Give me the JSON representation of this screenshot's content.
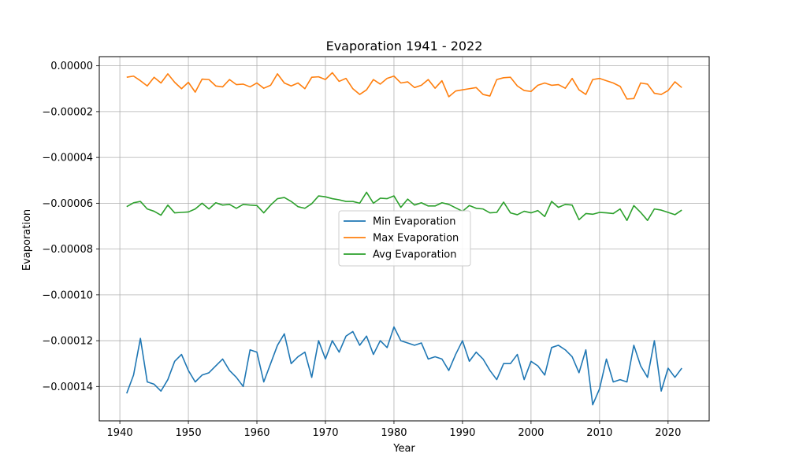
{
  "chart_data": {
    "type": "line",
    "title": "Evaporation 1941 - 2022",
    "xlabel": "Year",
    "ylabel": "Evaporation",
    "xlim": [
      1937,
      2026
    ],
    "ylim": [
      -0.000155,
      4e-06
    ],
    "xticks": [
      1940,
      1950,
      1960,
      1970,
      1980,
      1990,
      2000,
      2010,
      2020
    ],
    "xtick_labels": [
      "1940",
      "1950",
      "1960",
      "1970",
      "1980",
      "1990",
      "2000",
      "2010",
      "2020"
    ],
    "yticks": [
      0,
      -2e-05,
      -4e-05,
      -6e-05,
      -8e-05,
      -0.0001,
      -0.00012,
      -0.00014
    ],
    "ytick_labels": [
      "0.00000",
      "−0.00002",
      "−0.00004",
      "−0.00006",
      "−0.00008",
      "−0.00010",
      "−0.00012",
      "−0.00014"
    ],
    "grid": true,
    "legend_position": "center",
    "x": [
      1941,
      1942,
      1943,
      1944,
      1945,
      1946,
      1947,
      1948,
      1949,
      1950,
      1951,
      1952,
      1953,
      1954,
      1955,
      1956,
      1957,
      1958,
      1959,
      1960,
      1961,
      1962,
      1963,
      1964,
      1965,
      1966,
      1967,
      1968,
      1969,
      1970,
      1971,
      1972,
      1973,
      1974,
      1975,
      1976,
      1977,
      1978,
      1979,
      1980,
      1981,
      1982,
      1983,
      1984,
      1985,
      1986,
      1987,
      1988,
      1989,
      1990,
      1991,
      1992,
      1993,
      1994,
      1995,
      1996,
      1997,
      1998,
      1999,
      2000,
      2001,
      2002,
      2003,
      2004,
      2005,
      2006,
      2007,
      2008,
      2009,
      2010,
      2011,
      2012,
      2013,
      2014,
      2015,
      2016,
      2017,
      2018,
      2019,
      2020,
      2021,
      2022
    ],
    "series": [
      {
        "name": "Min Evaporation",
        "color": "#1f77b4",
        "values": [
          -0.000143,
          -0.000135,
          -0.000119,
          -0.000138,
          -0.000139,
          -0.000142,
          -0.000137,
          -0.000129,
          -0.000126,
          -0.000133,
          -0.000138,
          -0.000135,
          -0.000134,
          -0.000131,
          -0.000128,
          -0.000133,
          -0.000136,
          -0.00014,
          -0.000124,
          -0.000125,
          -0.000138,
          -0.00013,
          -0.000122,
          -0.000117,
          -0.00013,
          -0.000127,
          -0.000125,
          -0.000136,
          -0.00012,
          -0.000128,
          -0.00012,
          -0.000125,
          -0.000118,
          -0.000116,
          -0.000122,
          -0.000118,
          -0.000126,
          -0.00012,
          -0.000123,
          -0.000114,
          -0.00012,
          -0.000121,
          -0.000122,
          -0.000121,
          -0.000128,
          -0.000127,
          -0.000128,
          -0.000133,
          -0.000126,
          -0.00012,
          -0.000129,
          -0.000125,
          -0.000128,
          -0.000133,
          -0.000137,
          -0.00013,
          -0.00013,
          -0.000126,
          -0.000137,
          -0.000129,
          -0.000131,
          -0.000135,
          -0.000123,
          -0.000122,
          -0.000124,
          -0.000127,
          -0.000134,
          -0.000124,
          -0.000148,
          -0.000141,
          -0.000128,
          -0.000138,
          -0.000137,
          -0.000138,
          -0.000122,
          -0.000131,
          -0.000136,
          -0.00012,
          -0.000142,
          -0.000132,
          -0.000136,
          -0.000132
        ]
      },
      {
        "name": "Max Evaporation",
        "color": "#ff7f0e",
        "values": [
          -5e-06,
          -4.5e-06,
          -6.5e-06,
          -8.8e-06,
          -5e-06,
          -7.5e-06,
          -3.5e-06,
          -7.2e-06,
          -1e-05,
          -7.2e-06,
          -1.15e-05,
          -5.8e-06,
          -6e-06,
          -8.8e-06,
          -9.2e-06,
          -6e-06,
          -8.2e-06,
          -8e-06,
          -9.2e-06,
          -7.5e-06,
          -9.8e-06,
          -8.5e-06,
          -3.5e-06,
          -7.5e-06,
          -8.8e-06,
          -7.5e-06,
          -1e-05,
          -5e-06,
          -4.8e-06,
          -6e-06,
          -3e-06,
          -6.8e-06,
          -5.5e-06,
          -1e-05,
          -1.25e-05,
          -1.05e-05,
          -6e-06,
          -8e-06,
          -5.5e-06,
          -4.5e-06,
          -7.5e-06,
          -7e-06,
          -9.5e-06,
          -8.5e-06,
          -6e-06,
          -9.8e-06,
          -6.5e-06,
          -1.35e-05,
          -1.1e-05,
          -1.05e-05,
          -1e-05,
          -9.5e-06,
          -1.25e-05,
          -1.32e-05,
          -6e-06,
          -5.2e-06,
          -5e-06,
          -8.8e-06,
          -1.08e-05,
          -1.12e-05,
          -8.5e-06,
          -7.5e-06,
          -8.5e-06,
          -8.2e-06,
          -9.8e-06,
          -5.5e-06,
          -1.05e-05,
          -1.25e-05,
          -6e-06,
          -5.5e-06,
          -6.5e-06,
          -7.5e-06,
          -9e-06,
          -1.45e-05,
          -1.43e-05,
          -7.5e-06,
          -8e-06,
          -1.2e-05,
          -1.25e-05,
          -1.08e-05,
          -7e-06,
          -9.5e-06
        ]
      },
      {
        "name": "Avg Evaporation",
        "color": "#2ca02c",
        "values": [
          -6.15e-05,
          -5.98e-05,
          -5.92e-05,
          -6.25e-05,
          -6.35e-05,
          -6.52e-05,
          -6.08e-05,
          -6.42e-05,
          -6.4e-05,
          -6.38e-05,
          -6.25e-05,
          -6e-05,
          -6.25e-05,
          -5.98e-05,
          -6.08e-05,
          -6.05e-05,
          -6.22e-05,
          -6.05e-05,
          -6.08e-05,
          -6.1e-05,
          -6.42e-05,
          -6.08e-05,
          -5.8e-05,
          -5.75e-05,
          -5.92e-05,
          -6.15e-05,
          -6.22e-05,
          -6.02e-05,
          -5.68e-05,
          -5.72e-05,
          -5.8e-05,
          -5.85e-05,
          -5.92e-05,
          -5.92e-05,
          -6e-05,
          -5.52e-05,
          -6e-05,
          -5.78e-05,
          -5.8e-05,
          -5.68e-05,
          -6.18e-05,
          -5.82e-05,
          -6.08e-05,
          -5.98e-05,
          -6.12e-05,
          -6.12e-05,
          -5.98e-05,
          -6.05e-05,
          -6.2e-05,
          -6.35e-05,
          -6.1e-05,
          -6.22e-05,
          -6.25e-05,
          -6.42e-05,
          -6.4e-05,
          -5.95e-05,
          -6.42e-05,
          -6.5e-05,
          -6.35e-05,
          -6.42e-05,
          -6.32e-05,
          -6.58e-05,
          -5.92e-05,
          -6.18e-05,
          -6.05e-05,
          -6.08e-05,
          -6.72e-05,
          -6.45e-05,
          -6.48e-05,
          -6.4e-05,
          -6.42e-05,
          -6.45e-05,
          -6.25e-05,
          -6.75e-05,
          -6.1e-05,
          -6.4e-05,
          -6.75e-05,
          -6.25e-05,
          -6.3e-05,
          -6.4e-05,
          -6.5e-05,
          -6.3e-05
        ]
      }
    ]
  }
}
